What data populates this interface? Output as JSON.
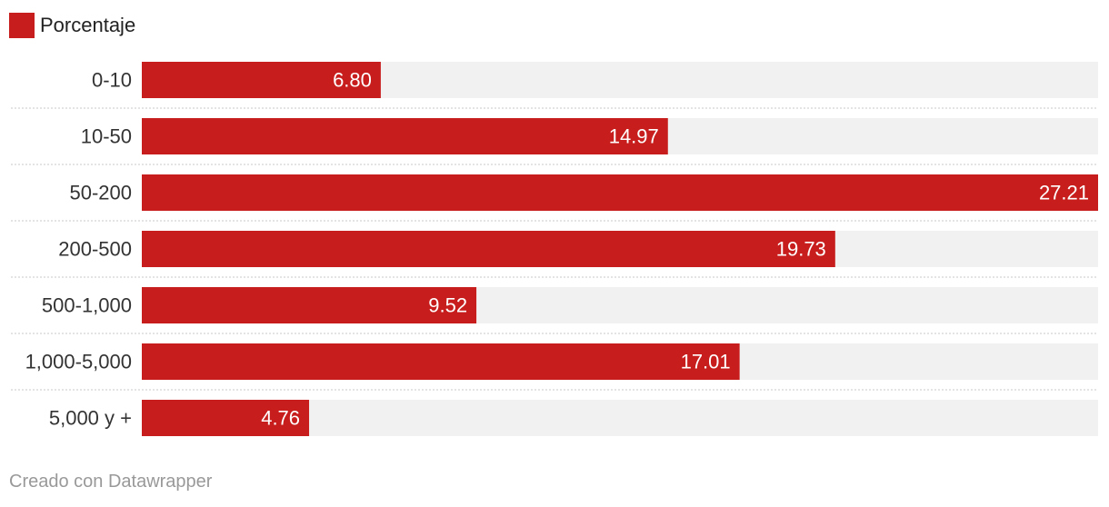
{
  "legend": {
    "label": "Porcentaje"
  },
  "footer": {
    "credit": "Creado con Datawrapper"
  },
  "chart_data": {
    "type": "bar",
    "orientation": "horizontal",
    "categories": [
      "0-10",
      "10-50",
      "50-200",
      "200-500",
      "500-1,000",
      "1,000-5,000",
      "5,000 y +"
    ],
    "series": [
      {
        "name": "Porcentaje",
        "values": [
          6.8,
          14.97,
          27.21,
          19.73,
          9.52,
          17.01,
          4.76
        ],
        "value_labels": [
          "6.80",
          "14.97",
          "27.21",
          "19.73",
          "9.52",
          "17.01",
          "4.76"
        ]
      }
    ],
    "xlim": [
      0,
      27.21
    ],
    "grid": false,
    "legend_position": "top-left",
    "colors": {
      "bar": "#c71e1d",
      "track": "#f1f1f1",
      "separator": "#c8c8c8",
      "value_label": "#ffffff",
      "category_label": "#333333"
    }
  }
}
